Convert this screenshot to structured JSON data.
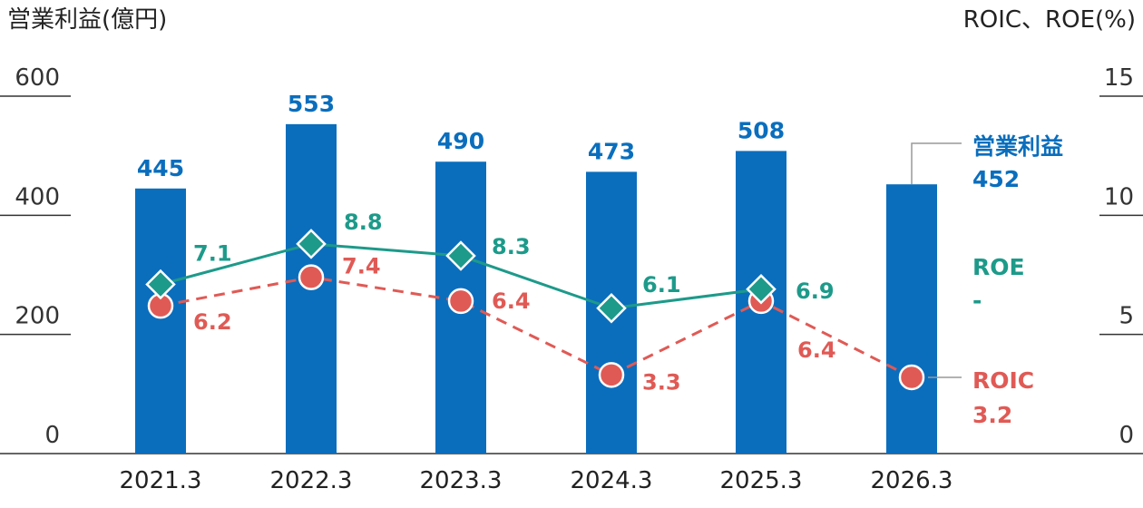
{
  "chart_data": {
    "type": "bar",
    "left_axis_title": "営業利益(億円)",
    "right_axis_title": "ROIC、ROE(%)",
    "categories": [
      "2021.3",
      "2022.3",
      "2023.3",
      "2024.3",
      "2025.3",
      "2026.3"
    ],
    "left_ylim": [
      0,
      600
    ],
    "left_ticks": [
      "0",
      "200",
      "400",
      "600"
    ],
    "right_ylim": [
      0,
      15
    ],
    "right_ticks": [
      "0",
      "5",
      "10",
      "15"
    ],
    "series": [
      {
        "name": "営業利益",
        "type": "bar",
        "axis": "left",
        "color": "#0a6ebd",
        "values": [
          445,
          553,
          490,
          473,
          508,
          452
        ],
        "labels": [
          "445",
          "553",
          "490",
          "473",
          "508",
          ""
        ]
      },
      {
        "name": "ROE",
        "type": "line",
        "axis": "right",
        "color": "#1d9a8a",
        "marker": "diamond",
        "values": [
          7.1,
          8.8,
          8.3,
          6.1,
          6.9,
          null
        ],
        "labels": [
          "7.1",
          "8.8",
          "8.3",
          "6.1",
          "6.9",
          ""
        ]
      },
      {
        "name": "ROIC",
        "type": "line",
        "axis": "right",
        "color": "#e05a55",
        "marker": "circle",
        "dashed": true,
        "values": [
          6.2,
          7.4,
          6.4,
          3.3,
          6.4,
          3.2
        ],
        "labels": [
          "6.2",
          "7.4",
          "6.4",
          "3.3",
          "6.4",
          ""
        ]
      }
    ],
    "legend": {
      "operating_profit_label": "営業利益",
      "operating_profit_value": "452",
      "roe_label": "ROE",
      "roe_value": "-",
      "roic_label": "ROIC",
      "roic_value": "3.2"
    }
  }
}
